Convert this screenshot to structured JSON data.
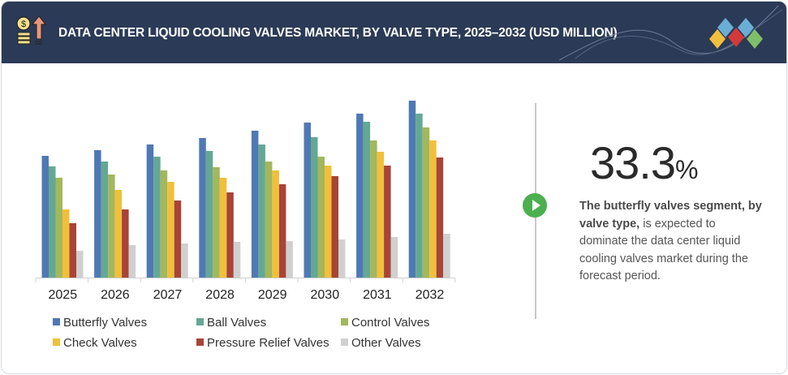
{
  "header": {
    "title": "DATA CENTER LIQUID COOLING VALVES MARKET, BY VALVE TYPE, 2025–2032 (USD MILLION)",
    "left_icon": "coins-growth-icon",
    "right_logo": "diamond-cluster-logo"
  },
  "highlight": {
    "value": "33.3",
    "unit": "%",
    "bold_text": "The butterfly valves segment, by valve type,",
    "text": " is expected to dominate the data center liquid cooling valves market during the forecast period.",
    "icon": "play-circle-icon",
    "accent": "#4caf50"
  },
  "chart_data": {
    "type": "bar",
    "title": "DATA CENTER LIQUID COOLING VALVES MARKET, BY VALVE TYPE, 2025–2032 (USD MILLION)",
    "categories": [
      "2025",
      "2026",
      "2027",
      "2028",
      "2029",
      "2030",
      "2031",
      "2032"
    ],
    "ylim": [
      0,
      225
    ],
    "y_axis_shown": false,
    "grid": false,
    "legend_placement": "bottom",
    "series": [
      {
        "name": "Butterfly Valves",
        "color": "#4f79b4",
        "values": [
          150,
          157,
          164,
          172,
          181,
          191,
          202,
          218
        ]
      },
      {
        "name": "Ball Valves",
        "color": "#64a894",
        "values": [
          137,
          143,
          149,
          156,
          164,
          173,
          192,
          202
        ]
      },
      {
        "name": "Control Valves",
        "color": "#a3b75c",
        "values": [
          123,
          127,
          132,
          136,
          143,
          149,
          169,
          185
        ]
      },
      {
        "name": "Check Valves",
        "color": "#f0c03c",
        "values": [
          84,
          108,
          118,
          123,
          132,
          138,
          155,
          169
        ]
      },
      {
        "name": "Pressure Relief Valves",
        "color": "#a84438",
        "values": [
          67,
          84,
          95,
          105,
          115,
          125,
          138,
          148
        ]
      },
      {
        "name": "Other Valves",
        "color": "#d0d0d0",
        "values": [
          33,
          40,
          42,
          44,
          45,
          47,
          50,
          54
        ]
      }
    ]
  }
}
